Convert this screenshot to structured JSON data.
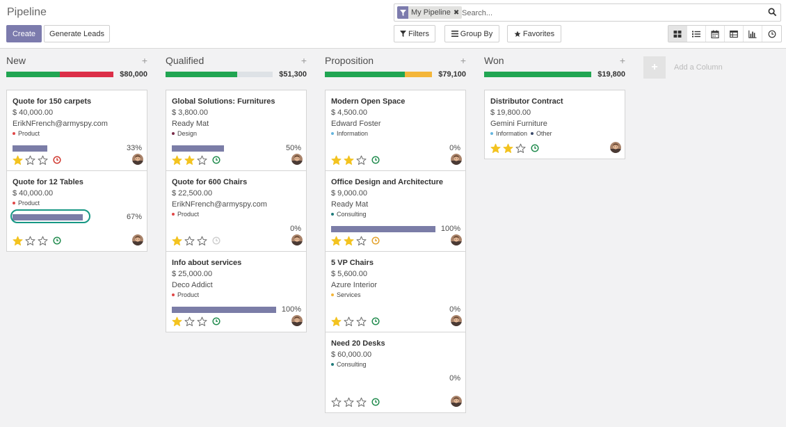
{
  "page_title": "Pipeline",
  "buttons": {
    "create": "Create",
    "generate_leads": "Generate Leads",
    "filters": "Filters",
    "group_by": "Group By",
    "favorites": "Favorites"
  },
  "search": {
    "facet": "My Pipeline",
    "placeholder": "Search..."
  },
  "views": [
    "kanban-icon",
    "list-icon",
    "calendar-icon",
    "pivot-icon",
    "graph-icon",
    "activity-view-icon"
  ],
  "add_column_label": "Add a Column",
  "colors": {
    "accent": "#7c7bad",
    "green": "#21a552",
    "red": "#dc2f48",
    "orange": "#f4b63a",
    "grey": "#dee2e6",
    "activity_green": "#238c4f",
    "activity_red": "#d0382f",
    "activity_orange": "#e3a12b",
    "activity_grey": "#cfcfcf"
  },
  "columns": [
    {
      "title": "New",
      "sum": "$80,000",
      "progress": [
        {
          "color": "green",
          "fraction": 0.5
        },
        {
          "color": "red",
          "fraction": 0.5
        }
      ],
      "cards": [
        {
          "title": "Quote for 150 carpets",
          "amount": "$ 40,000.00",
          "contact": "ErikNFrench@armyspy.com",
          "tags": [
            {
              "label": "Product",
              "color": "#e04848"
            }
          ],
          "probability": 0.33,
          "prob_label": "33%",
          "stars": 1,
          "activity": "red",
          "highlight": false
        },
        {
          "title": "Quote for 12 Tables",
          "amount": "$ 40,000.00",
          "contact": "",
          "tags": [
            {
              "label": "Product",
              "color": "#e04848"
            }
          ],
          "probability": 0.67,
          "prob_label": "67%",
          "stars": 1,
          "activity": "green",
          "highlight": true
        }
      ]
    },
    {
      "title": "Qualified",
      "sum": "$51,300",
      "progress": [
        {
          "color": "green",
          "fraction": 0.67
        },
        {
          "color": "grey",
          "fraction": 0.33
        }
      ],
      "cards": [
        {
          "title": "Global Solutions: Furnitures",
          "amount": "$ 3,800.00",
          "contact": "Ready Mat",
          "tags": [
            {
              "label": "Design",
              "color": "#7a2d4a"
            }
          ],
          "probability": 0.5,
          "prob_label": "50%",
          "stars": 2,
          "activity": "green",
          "highlight": false
        },
        {
          "title": "Quote for 600 Chairs",
          "amount": "$ 22,500.00",
          "contact": "ErikNFrench@armyspy.com",
          "tags": [
            {
              "label": "Product",
              "color": "#e04848"
            }
          ],
          "probability": 0,
          "prob_label": "0%",
          "stars": 1,
          "activity": "grey",
          "highlight": false
        },
        {
          "title": "Info about services",
          "amount": "$ 25,000.00",
          "contact": "Deco Addict",
          "tags": [
            {
              "label": "Product",
              "color": "#e04848"
            }
          ],
          "probability": 1,
          "prob_label": "100%",
          "stars": 1,
          "activity": "green",
          "highlight": false
        }
      ]
    },
    {
      "title": "Proposition",
      "sum": "$79,100",
      "progress": [
        {
          "color": "green",
          "fraction": 0.75
        },
        {
          "color": "orange",
          "fraction": 0.25
        }
      ],
      "cards": [
        {
          "title": "Modern Open Space",
          "amount": "$ 4,500.00",
          "contact": "Edward Foster",
          "tags": [
            {
              "label": "Information",
              "color": "#65b5de"
            }
          ],
          "probability": 0,
          "prob_label": "0%",
          "stars": 2,
          "activity": "green",
          "highlight": false
        },
        {
          "title": "Office Design and Architecture",
          "amount": "$ 9,000.00",
          "contact": "Ready Mat",
          "tags": [
            {
              "label": "Consulting",
              "color": "#1f7a7a"
            }
          ],
          "probability": 1,
          "prob_label": "100%",
          "stars": 2,
          "activity": "orange",
          "highlight": false
        },
        {
          "title": "5 VP Chairs",
          "amount": "$ 5,600.00",
          "contact": "Azure Interior",
          "tags": [
            {
              "label": "Services",
              "color": "#f4b63a"
            }
          ],
          "probability": 0,
          "prob_label": "0%",
          "stars": 1,
          "activity": "green",
          "highlight": false
        },
        {
          "title": "Need 20 Desks",
          "amount": "$ 60,000.00",
          "contact": "",
          "tags": [
            {
              "label": "Consulting",
              "color": "#1f7a7a"
            }
          ],
          "probability": 0,
          "prob_label": "0%",
          "stars": 0,
          "activity": "green",
          "highlight": false
        }
      ]
    },
    {
      "title": "Won",
      "sum": "$19,800",
      "progress": [
        {
          "color": "green",
          "fraction": 1
        }
      ],
      "cards": [
        {
          "title": "Distributor Contract",
          "amount": "$ 19,800.00",
          "contact": "Gemini Furniture",
          "tags": [
            {
              "label": "Information",
              "color": "#65b5de"
            },
            {
              "label": "Other",
              "color": "#3a4a6b"
            }
          ],
          "probability": null,
          "prob_label": "",
          "stars": 2,
          "activity": "green",
          "highlight": false,
          "short": true
        }
      ]
    }
  ]
}
